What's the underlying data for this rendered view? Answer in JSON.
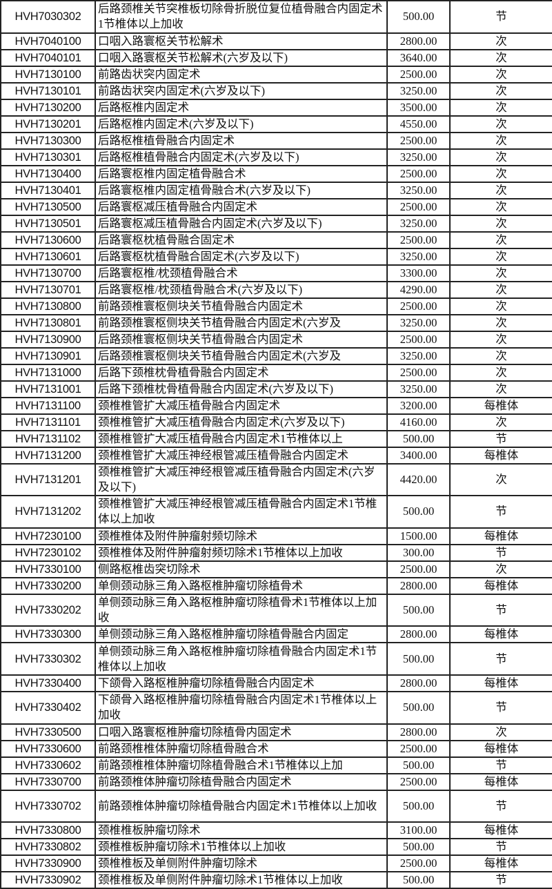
{
  "rows": [
    [
      "HVH7030302",
      "后路颈椎关节突椎板切除骨折脱位复位植骨融合内固定术1节椎体以上加收",
      "500.00",
      "节",
      2
    ],
    [
      "HVH7040100",
      "口咽入路寰枢关节松解术",
      "2800.00",
      "次",
      1
    ],
    [
      "HVH7040101",
      "口咽入路寰枢关节松解术(六岁及以下)",
      "3640.00",
      "次",
      1
    ],
    [
      "HVH7130100",
      "前路齿状突内固定术",
      "2500.00",
      "次",
      1
    ],
    [
      "HVH7130101",
      "前路齿状突内固定术(六岁及以下)",
      "3250.00",
      "次",
      1
    ],
    [
      "HVH7130200",
      "后路枢椎内固定术",
      "3500.00",
      "次",
      1
    ],
    [
      "HVH7130201",
      "后路枢椎内固定术(六岁及以下)",
      "4550.00",
      "次",
      1
    ],
    [
      "HVH7130300",
      "后路枢椎植骨融合内固定术",
      "2500.00",
      "次",
      1
    ],
    [
      "HVH7130301",
      "后路枢椎植骨融合内固定术(六岁及以下)",
      "3250.00",
      "次",
      1
    ],
    [
      "HVH7130400",
      "后路寰枢椎内固定植骨融合术",
      "2500.00",
      "次",
      1
    ],
    [
      "HVH7130401",
      "后路寰枢椎内固定植骨融合术(六岁及以下)",
      "3250.00",
      "次",
      1
    ],
    [
      "HVH7130500",
      "后路寰枢减压植骨融合内固定术",
      "2500.00",
      "次",
      1
    ],
    [
      "HVH7130501",
      "后路寰枢减压植骨融合内固定术(六岁及以下)",
      "3250.00",
      "次",
      1
    ],
    [
      "HVH7130600",
      "后路寰枢枕植骨融合固定术",
      "2500.00",
      "次",
      1
    ],
    [
      "HVH7130601",
      "后路寰枢枕植骨融合固定术(六岁及以下)",
      "3250.00",
      "次",
      1
    ],
    [
      "HVH7130700",
      "后路寰枢椎/枕颈植骨融合术",
      "3300.00",
      "次",
      1
    ],
    [
      "HVH7130701",
      "后路寰枢椎/枕颈植骨融合术(六岁及以下)",
      "4290.00",
      "次",
      1
    ],
    [
      "HVH7130800",
      "前路颈椎寰枢侧块关节植骨融合内固定术",
      "2500.00",
      "次",
      1
    ],
    [
      "HVH7130801",
      "前路颈椎寰枢侧块关节植骨融合内固定术(六岁及",
      "3250.00",
      "次",
      1
    ],
    [
      "HVH7130900",
      "后路颈椎寰枢侧块关节植骨融合内固定术",
      "2500.00",
      "次",
      1
    ],
    [
      "HVH7130901",
      "后路颈椎寰枢侧块关节植骨融合内固定术(六岁及",
      "3250.00",
      "次",
      1
    ],
    [
      "HVH7131000",
      "后路下颈椎枕骨植骨融合内固定术",
      "2500.00",
      "次",
      1
    ],
    [
      "HVH7131001",
      "后路下颈椎枕骨植骨融合内固定术(六岁及以下)",
      "3250.00",
      "次",
      1
    ],
    [
      "HVH7131100",
      "颈椎椎管扩大减压植骨融合内固定术",
      "3200.00",
      "每椎体",
      1
    ],
    [
      "HVH7131101",
      "颈椎椎管扩大减压植骨融合内固定术(六岁及以下)",
      "4160.00",
      "次",
      1
    ],
    [
      "HVH7131102",
      "颈椎椎管扩大减压植骨融合内固定术1节椎体以上",
      "500.00",
      "节",
      1
    ],
    [
      "HVH7131200",
      "颈椎椎管扩大减压神经根管减压植骨融合内固定术",
      "3400.00",
      "每椎体",
      1
    ],
    [
      "HVH7131201",
      "颈椎椎管扩大减压神经根管减压植骨融合内固定术(六岁及以下)",
      "4420.00",
      "次",
      2
    ],
    [
      "HVH7131202",
      "颈椎椎管扩大减压神经根管减压植骨融合内固定术1节椎体以上加收",
      "500.00",
      "节",
      2
    ],
    [
      "HVH7230100",
      "颈椎椎体及附件肿瘤射频切除术",
      "1500.00",
      "每椎体",
      1
    ],
    [
      "HVH7230102",
      "颈椎椎体及附件肿瘤射频切除术1节椎体以上加收",
      "300.00",
      "节",
      1
    ],
    [
      "HVH7330100",
      "侧路枢椎齿突切除术",
      "2500.00",
      "次",
      1
    ],
    [
      "HVH7330200",
      "单侧颈动脉三角入路枢椎肿瘤切除植骨术",
      "2800.00",
      "每椎体",
      1
    ],
    [
      "HVH7330202",
      "单侧颈动脉三角入路枢椎肿瘤切除植骨术1节椎体以上加收",
      "500.00",
      "节",
      2
    ],
    [
      "HVH7330300",
      "单侧颈动脉三角入路枢椎肿瘤切除植骨融合内固定",
      "2800.00",
      "每椎体",
      1
    ],
    [
      "HVH7330302",
      "单侧颈动脉三角入路枢椎肿瘤切除植骨融合内固定术1节椎体以上加收",
      "500.00",
      "节",
      2
    ],
    [
      "HVH7330400",
      "下颌骨入路枢椎肿瘤切除植骨融合内固定术",
      "2800.00",
      "每椎体",
      1
    ],
    [
      "HVH7330402",
      "下颌骨入路枢椎肿瘤切除植骨融合内固定术1节椎体以上加收",
      "500.00",
      "节",
      2
    ],
    [
      "HVH7330500",
      "口咽入路寰枢椎肿瘤切除植骨内固定术",
      "2800.00",
      "次",
      1
    ],
    [
      "HVH7330600",
      "前路颈椎椎体肿瘤切除植骨融合术",
      "2500.00",
      "每椎体",
      1
    ],
    [
      "HVH7330602",
      "前路颈椎椎体肿瘤切除植骨融合术1节椎体以上加",
      "500.00",
      "节",
      1
    ],
    [
      "HVH7330700",
      "前路颈椎体肿瘤切除植骨融合内固定术",
      "2500.00",
      "每椎体",
      1
    ],
    [
      "HVH7330702",
      "前路颈椎体肿瘤切除植骨融合内固定术1节椎体以上加收",
      "500.00",
      "节",
      2
    ],
    [
      "HVH7330800",
      "颈椎椎板肿瘤切除术",
      "3100.00",
      "每椎体",
      1
    ],
    [
      "HVH7330802",
      "颈椎椎板肿瘤切除术1节椎体以上加收",
      "500.00",
      "节",
      1
    ],
    [
      "HVH7330900",
      "颈椎椎板及单侧附件肿瘤切除术",
      "2500.00",
      "每椎体",
      1
    ],
    [
      "HVH7330902",
      "颈椎椎板及单侧附件肿瘤切除术1节椎体以上加收",
      "500.00",
      "节",
      1
    ]
  ]
}
